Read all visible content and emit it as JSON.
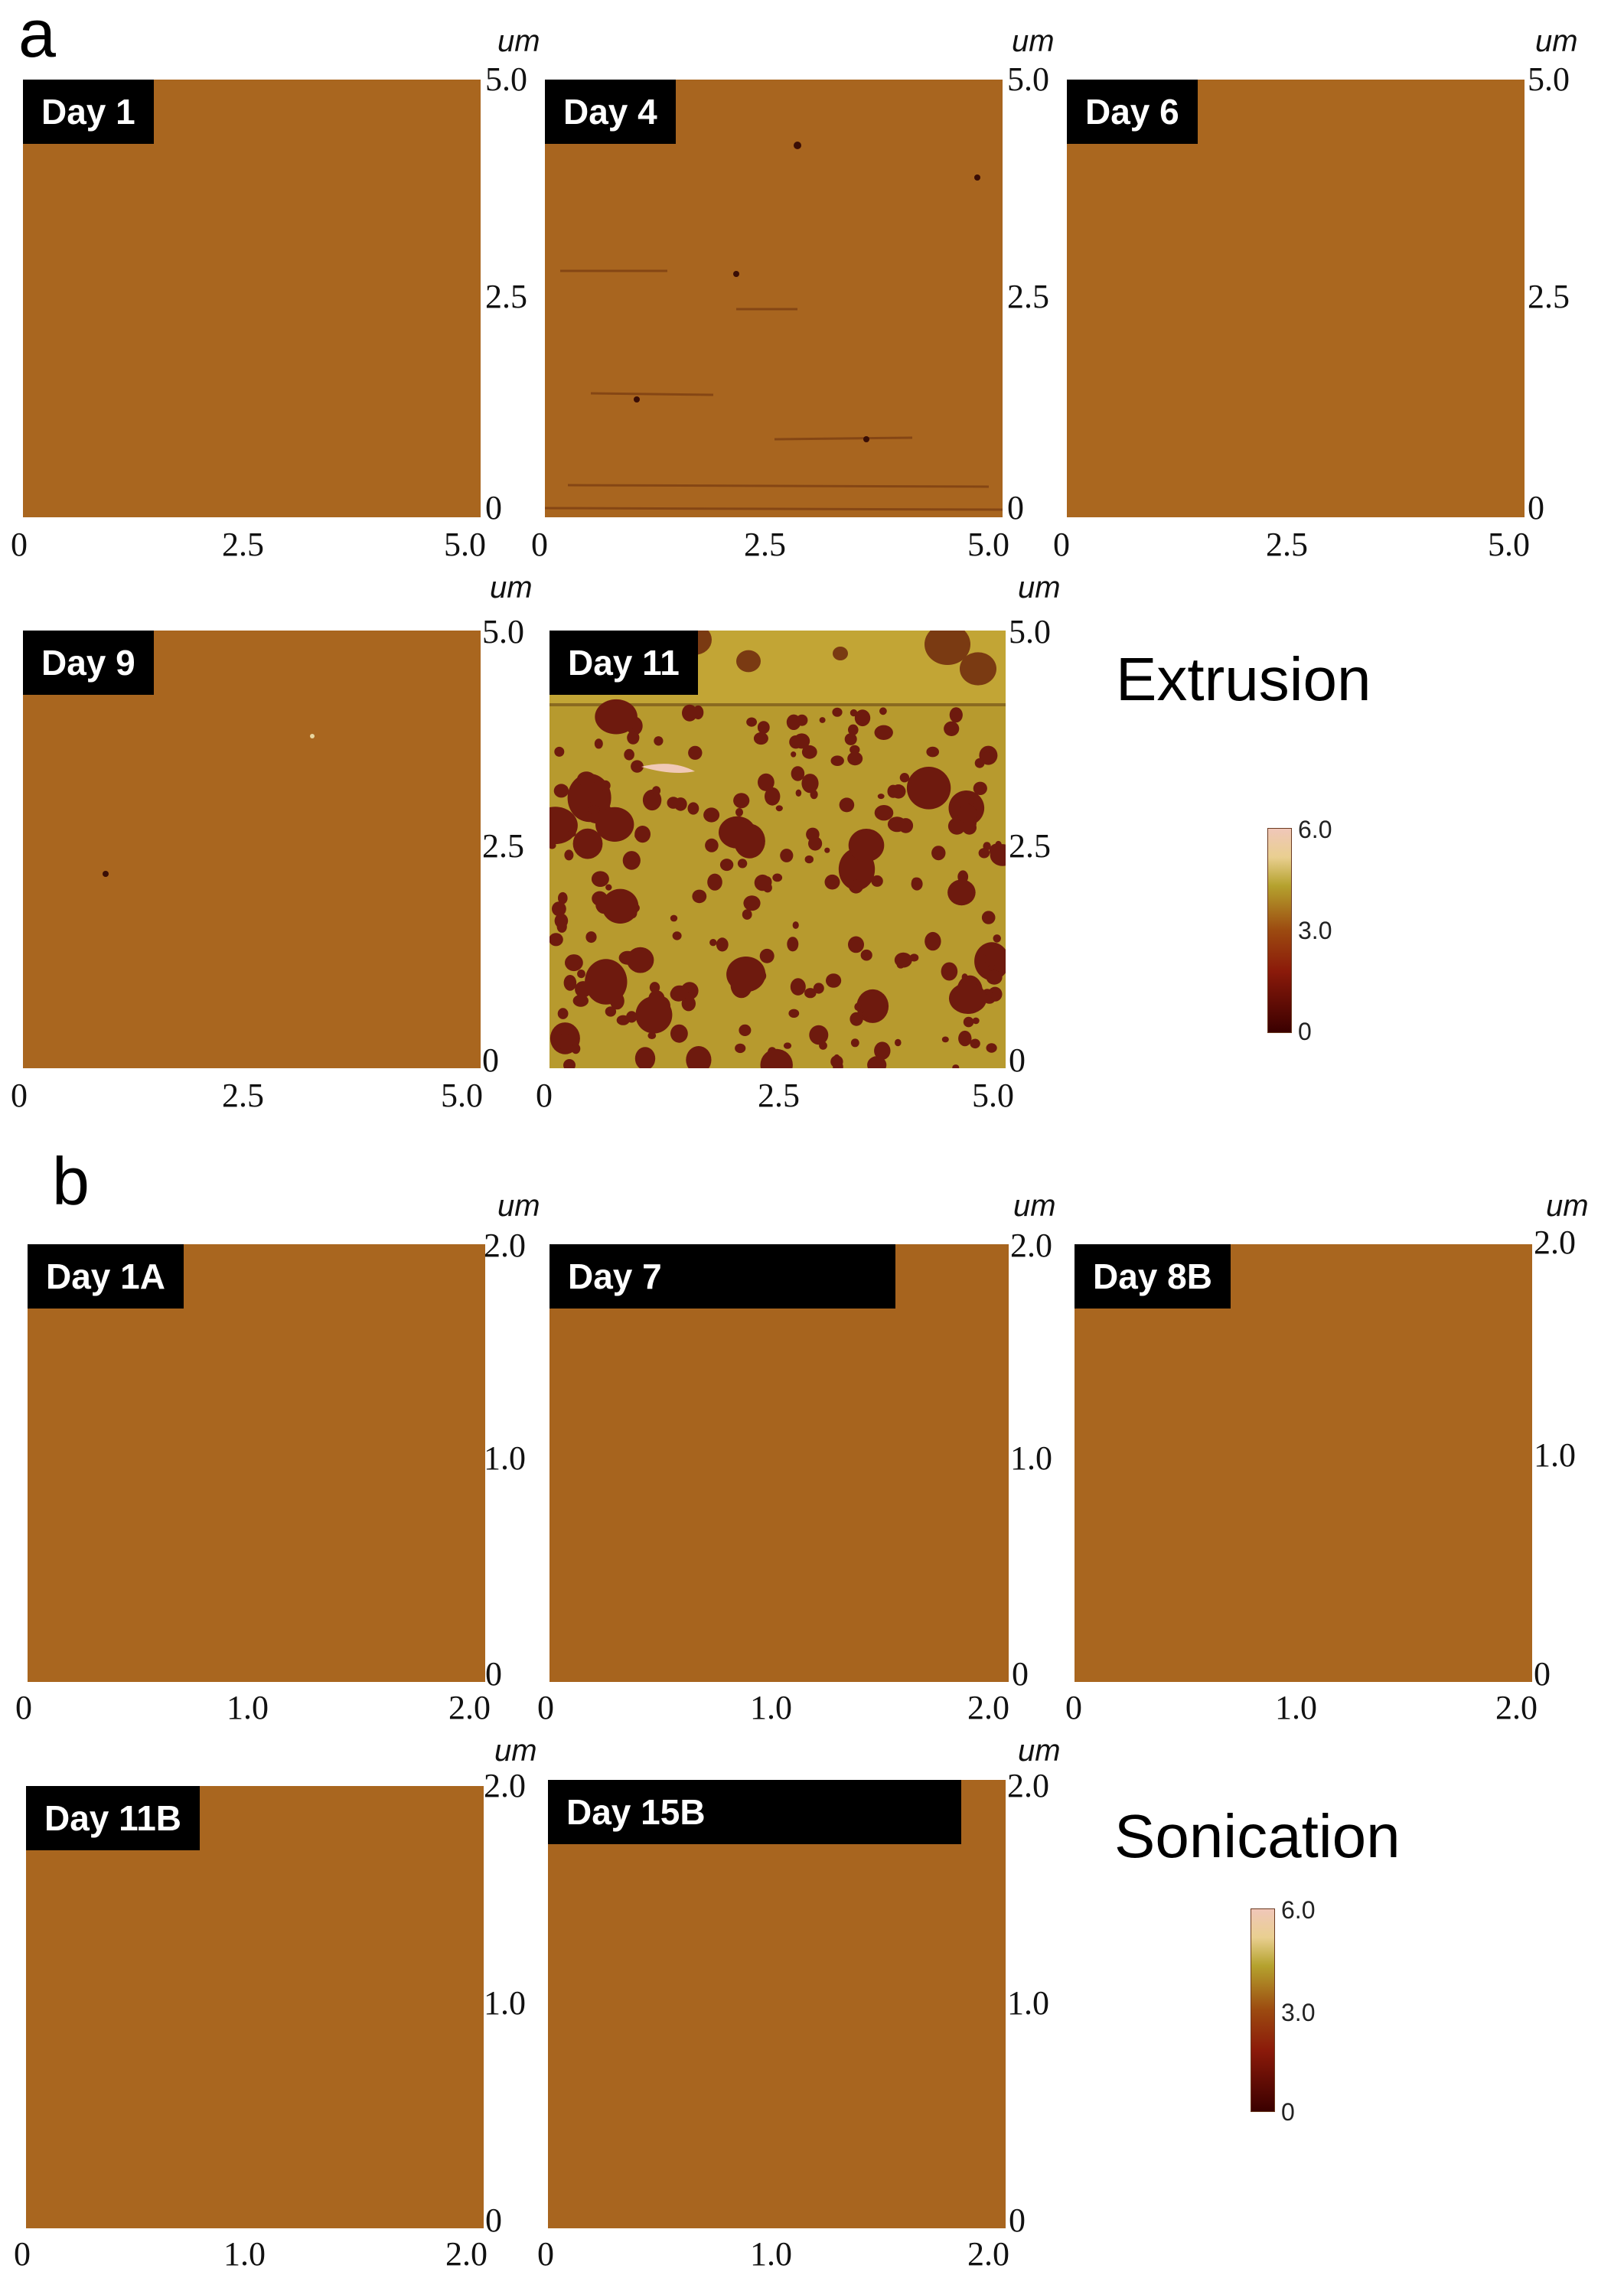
{
  "panel_a": {
    "letter": "a",
    "method": "Extrusion",
    "unit": "um",
    "axis_ticks": [
      "0",
      "2.5",
      "5.0"
    ],
    "images": [
      {
        "label": "Day 1"
      },
      {
        "label": "Day 4"
      },
      {
        "label": "Day 6"
      },
      {
        "label": "Day 9"
      },
      {
        "label": "Day 11"
      }
    ],
    "colorbar": {
      "min": "0",
      "mid": "3.0",
      "max": "6.0"
    }
  },
  "panel_b": {
    "letter": "b",
    "method": "Sonication",
    "unit": "um",
    "axis_ticks": [
      "0",
      "1.0",
      "2.0"
    ],
    "images": [
      {
        "label": "Day 1A"
      },
      {
        "label": "Day 7"
      },
      {
        "label": "Day 8B"
      },
      {
        "label": "Day 11B"
      },
      {
        "label": "Day 15B"
      }
    ],
    "colorbar": {
      "min": "0",
      "mid": "3.0",
      "max": "6.0"
    }
  },
  "colors": {
    "surface": "#a9661f",
    "surface_dark": "#6b1a10",
    "surface_light": "#c7b23a"
  }
}
